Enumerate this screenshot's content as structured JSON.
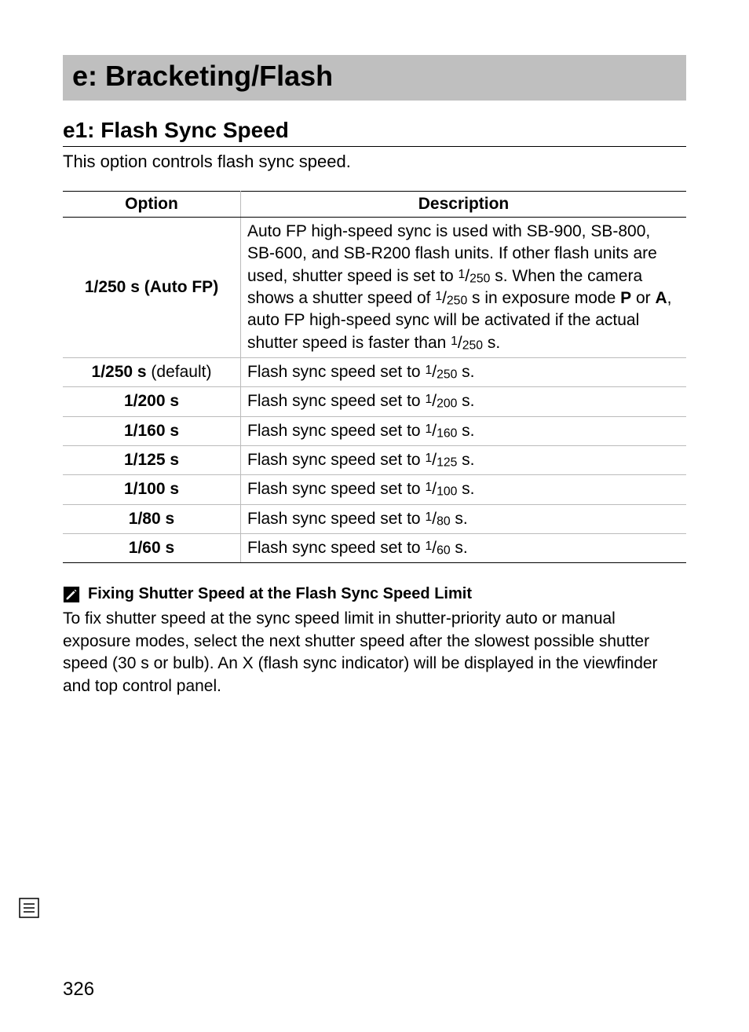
{
  "section_header": "e: Bracketing/Flash",
  "sub_header": "e1: Flash Sync Speed",
  "intro": "This option controls flash sync speed.",
  "table": {
    "columns": [
      "Option",
      "Description"
    ],
    "rows": [
      {
        "option_bold": "1/250 s (Auto FP)",
        "option_reg": "",
        "desc_type": "autofp"
      },
      {
        "option_bold": "1/250 s",
        "option_reg": " (default)",
        "desc_type": "plain",
        "d": "250"
      },
      {
        "option_bold": "1/200 s",
        "option_reg": "",
        "desc_type": "plain",
        "d": "200"
      },
      {
        "option_bold": "1/160 s",
        "option_reg": "",
        "desc_type": "plain",
        "d": "160"
      },
      {
        "option_bold": "1/125 s",
        "option_reg": "",
        "desc_type": "plain",
        "d": "125"
      },
      {
        "option_bold": "1/100 s",
        "option_reg": "",
        "desc_type": "plain",
        "d": "100"
      },
      {
        "option_bold": "1/80 s",
        "option_reg": "",
        "desc_type": "plain",
        "d": "80"
      },
      {
        "option_bold": "1/60 s",
        "option_reg": "",
        "desc_type": "plain",
        "d": "60"
      }
    ],
    "autofp_parts": {
      "p1": "Auto FP high-speed sync is used with SB-900, SB-800, SB-600, and SB-R200 flash units.  If other flash units are used, shutter speed is set to ",
      "p2": " s.  When the camera shows a shutter speed of ",
      "p3": " s in exposure mode ",
      "modeP": "P",
      "p4": " or ",
      "modeA": "A",
      "p5": ", auto FP high-speed sync will be activated if the actual shutter speed is faster than ",
      "p6": " s."
    },
    "plain_parts": {
      "prefix": "Flash sync speed set to ",
      "suffix": " s."
    },
    "frac_n": "1",
    "frac_d_250": "250"
  },
  "note": {
    "title": "Fixing Shutter Speed at the Flash Sync Speed Limit",
    "body": "To fix shutter speed at the sync speed limit in shutter-priority auto or manual exposure modes, select the next shutter speed after the slowest possible shutter speed (30 s or bulb).  An X (flash sync indicator) will be displayed in the viewfinder and top control panel."
  },
  "page_number": "326"
}
